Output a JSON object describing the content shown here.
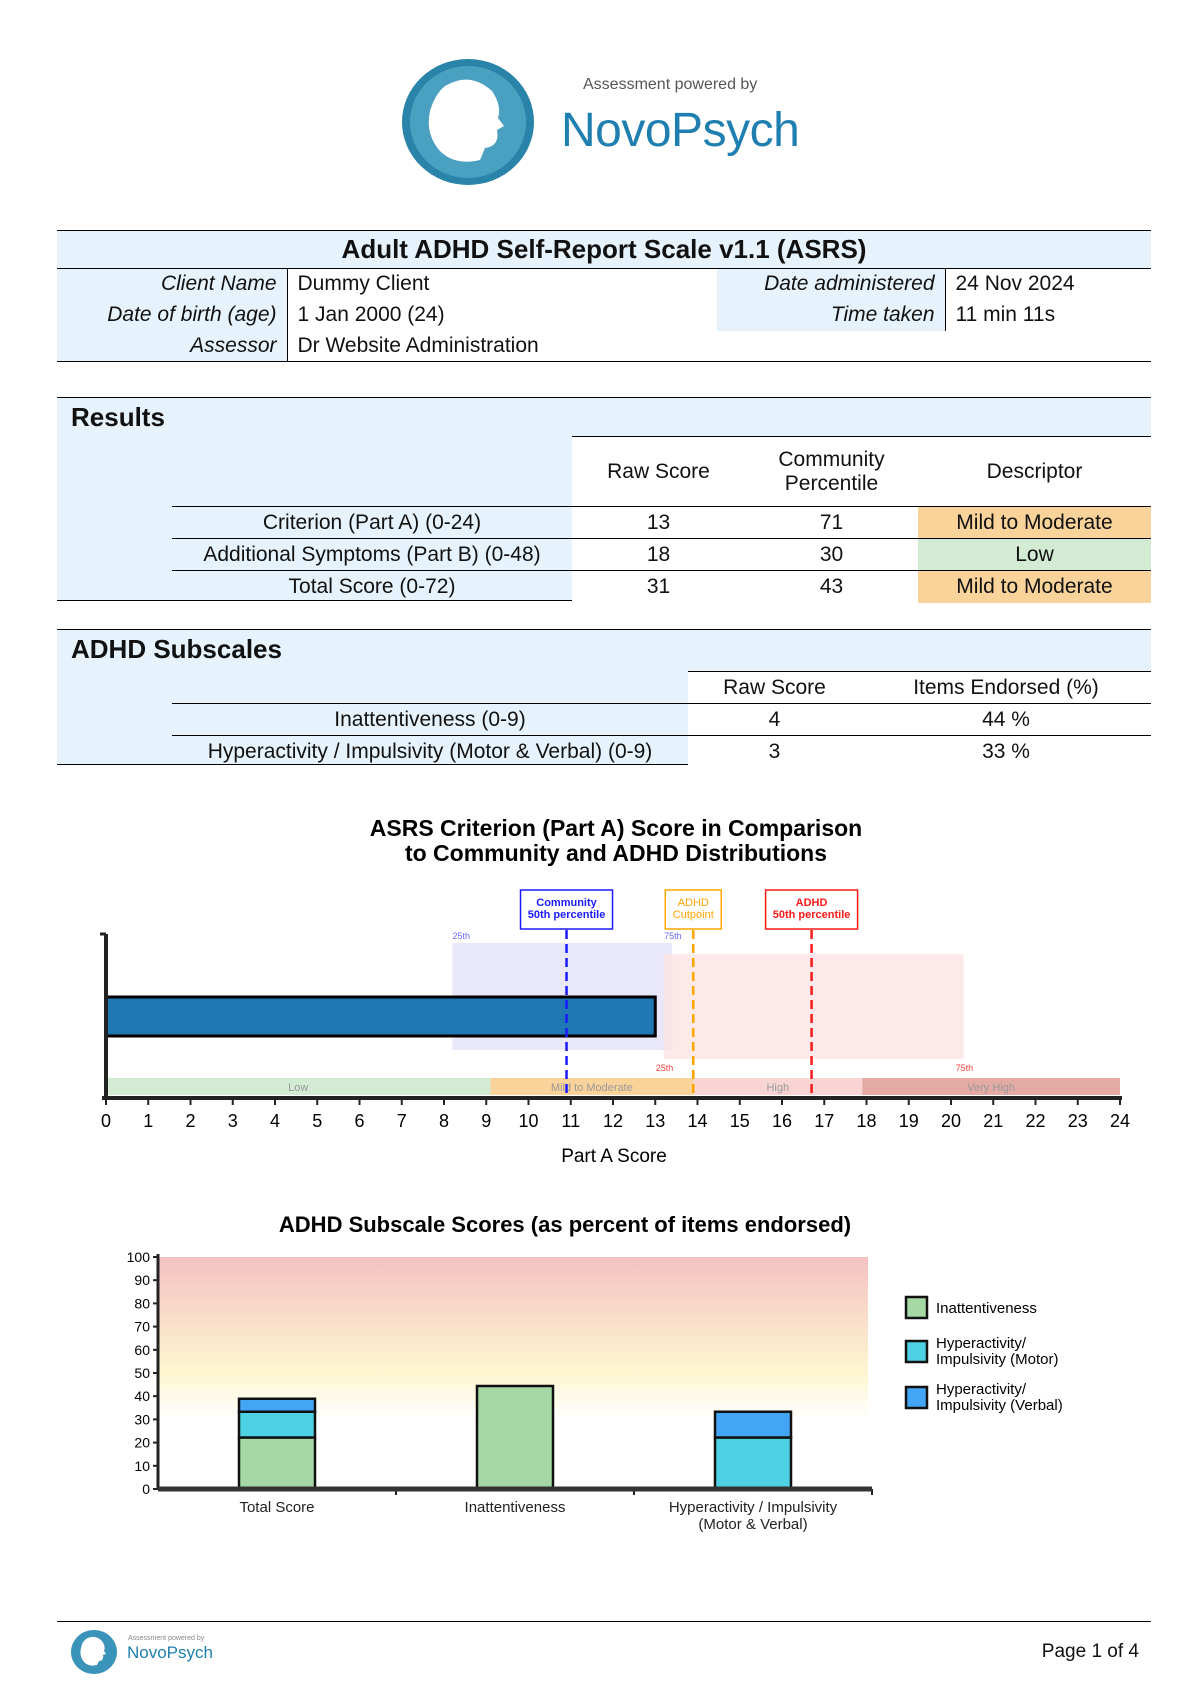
{
  "logo": {
    "tagline": "Assessment powered by",
    "brand": "NovoPsych"
  },
  "info": {
    "title": "Adult ADHD Self-Report Scale v1.1 (ASRS)",
    "client_name_label": "Client Name",
    "client_name": "Dummy Client",
    "dob_label": "Date of birth (age)",
    "dob": "1 Jan 2000 (24)",
    "assessor_label": "Assessor",
    "assessor": "Dr Website Administration",
    "date_label": "Date administered",
    "date": "24 Nov 2024",
    "time_label": "Time taken",
    "time": "11 min 11s"
  },
  "results": {
    "title": "Results",
    "headers": [
      "Raw Score",
      "Community Percentile",
      "Descriptor"
    ],
    "rows": [
      {
        "label": "Criterion (Part A) (0-24)",
        "raw": "13",
        "pct": "71",
        "desc": "Mild to Moderate",
        "color": "#fad39b"
      },
      {
        "label": "Additional Symptoms (Part B) (0-48)",
        "raw": "18",
        "pct": "30",
        "desc": "Low",
        "color": "#d3ead3"
      },
      {
        "label": "Total Score (0-72)",
        "raw": "31",
        "pct": "43",
        "desc": "Mild to Moderate",
        "color": "#fad39b"
      }
    ]
  },
  "subscales": {
    "title": "ADHD Subscales",
    "headers": [
      "Raw Score",
      "Items Endorsed (%)"
    ],
    "rows": [
      {
        "label": "Inattentiveness (0-9)",
        "raw": "4",
        "pct": "44 %"
      },
      {
        "label": "Hyperactivity / Impulsivity (Motor & Verbal) (0-9)",
        "raw": "3",
        "pct": "33 %"
      }
    ]
  },
  "chart_data": [
    {
      "type": "bar",
      "orientation": "horizontal",
      "title": "ASRS Criterion (Part A) Score in Comparison to Community and ADHD Distributions",
      "title_lines": [
        "ASRS Criterion (Part A) Score in Comparison",
        "to Community and ADHD Distributions"
      ],
      "xlabel": "Part A Score",
      "xlim": [
        0,
        24
      ],
      "ticks": [
        0,
        1,
        2,
        3,
        4,
        5,
        6,
        7,
        8,
        9,
        10,
        11,
        12,
        13,
        14,
        15,
        16,
        17,
        18,
        19,
        20,
        21,
        22,
        23,
        24
      ],
      "value": 13,
      "bar_color": "#1f77b4",
      "community_range": {
        "p25": 8.2,
        "p75": 13.4,
        "p25_label": "25th",
        "p75_label": "75th",
        "color": "#e6e6fa"
      },
      "adhd_range": {
        "p25": 13.2,
        "p75": 20.3,
        "p25_label": "25th",
        "p75_label": "75th",
        "color": "#fde3e3"
      },
      "markers": [
        {
          "label_lines": [
            "Community",
            "50th percentile"
          ],
          "x": 10.9,
          "color": "#1a1aff"
        },
        {
          "label_lines": [
            "ADHD",
            "Cutpoint"
          ],
          "x": 13.9,
          "color": "#ffa500"
        },
        {
          "label_lines": [
            "ADHD",
            "50th percentile"
          ],
          "x": 16.7,
          "color": "#ff1a1a"
        }
      ],
      "bands": [
        {
          "label": "Low",
          "from": 0,
          "to": 9.1,
          "color": "#d3ead3"
        },
        {
          "label": "Mild to Moderate",
          "from": 9.1,
          "to": 13.9,
          "color": "#fad39b"
        },
        {
          "label": "High",
          "from": 13.9,
          "to": 17.9,
          "color": "#f8d4d4"
        },
        {
          "label": "Very High",
          "from": 17.9,
          "to": 24,
          "color": "#e4aaa4"
        }
      ]
    },
    {
      "type": "bar",
      "stacked": true,
      "title": "ADHD Subscale Scores (as percent of items endorsed)",
      "ylim": [
        0,
        100
      ],
      "yticks": [
        0,
        10,
        20,
        30,
        40,
        50,
        60,
        70,
        80,
        90,
        100
      ],
      "categories": [
        "Total Score",
        "Inattentiveness",
        "Hyperactivity / Impulsivity (Motor & Verbal)"
      ],
      "category_lines": [
        [
          "Total Score"
        ],
        [
          "Inattentiveness"
        ],
        [
          "Hyperactivity / Impulsivity",
          "(Motor & Verbal)"
        ]
      ],
      "series": [
        {
          "name": "Inattentiveness",
          "legend_lines": [
            "Inattentiveness"
          ],
          "color": "#a6d8a6",
          "values": [
            22.2,
            44.4,
            0
          ]
        },
        {
          "name": "Hyperactivity/ Impulsivity (Motor)",
          "legend_lines": [
            "Hyperactivity/",
            "Impulsivity (Motor)"
          ],
          "color": "#4dd0e1",
          "values": [
            11.1,
            0,
            22.2
          ]
        },
        {
          "name": "Hyperactivity/ Impulsivity (Verbal)",
          "legend_lines": [
            "Hyperactivity/",
            "Impulsivity (Verbal)"
          ],
          "color": "#42a5f5",
          "values": [
            5.6,
            0,
            11.1
          ]
        }
      ],
      "legend": "right",
      "background_gradient": [
        "#f4c2c2",
        "#fdf6d0",
        "#ffffff"
      ]
    }
  ],
  "footer": {
    "tagline": "Assessment powered by",
    "brand": "NovoPsych",
    "page": "Page 1 of 4"
  }
}
